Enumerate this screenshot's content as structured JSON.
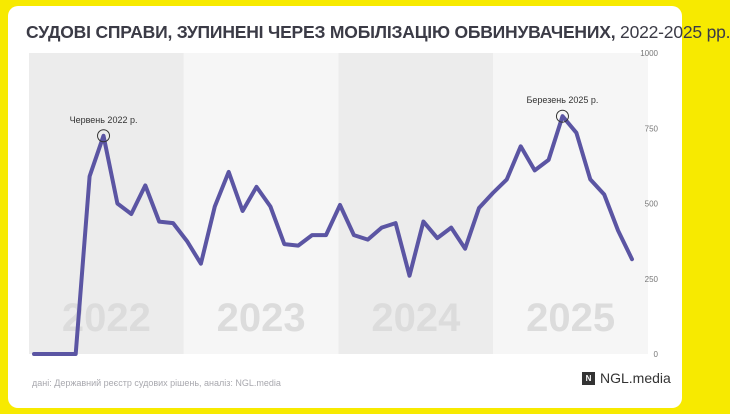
{
  "header": {
    "title_bold": "СУДОВІ СПРАВИ, ЗУПИНЕНІ ЧЕРЕЗ МОБІЛІЗАЦІЮ ОБВИНУВАЧЕНИХ,",
    "title_light": " 2022-2025 рр."
  },
  "footer": {
    "source": "дані: Державний реєстр судових рішень, аналіз: NGL.media",
    "brand_icon": "NGL-logo-square",
    "brand": "NGL.media"
  },
  "colors": {
    "background_frame": "#f7ea00",
    "line": "#5b55a3",
    "band_dark": "#ececec",
    "band_light": "#f6f6f6",
    "year_text": "#dcdcdc"
  },
  "chart_data": {
    "type": "line",
    "title": "СУДОВІ СПРАВИ, ЗУПИНЕНІ ЧЕРЕЗ МОБІЛІЗАЦІЮ ОБВИНУВАЧЕНИХ, 2022-2025 рр.",
    "xlabel": "",
    "ylabel": "",
    "ylim": [
      0,
      1000
    ],
    "y_ticks": [
      0,
      250,
      500,
      750,
      1000
    ],
    "grid": false,
    "y_axis_side": "right",
    "year_bands": [
      {
        "label": "2022",
        "shade": "dark"
      },
      {
        "label": "2023",
        "shade": "light"
      },
      {
        "label": "2024",
        "shade": "dark"
      },
      {
        "label": "2025",
        "shade": "light"
      }
    ],
    "x": [
      "2022-01",
      "2022-02",
      "2022-03",
      "2022-04",
      "2022-05",
      "2022-06",
      "2022-07",
      "2022-08",
      "2022-09",
      "2022-10",
      "2022-11",
      "2022-12",
      "2023-01",
      "2023-02",
      "2023-03",
      "2023-04",
      "2023-05",
      "2023-06",
      "2023-07",
      "2023-08",
      "2023-09",
      "2023-10",
      "2023-11",
      "2023-12",
      "2024-01",
      "2024-02",
      "2024-03",
      "2024-04",
      "2024-05",
      "2024-06",
      "2024-07",
      "2024-08",
      "2024-09",
      "2024-10",
      "2024-11",
      "2024-12",
      "2025-01",
      "2025-02",
      "2025-03",
      "2025-04",
      "2025-05",
      "2025-06",
      "2025-07",
      "2025-08"
    ],
    "series": [
      {
        "values": [
          0,
          0,
          0,
          0,
          590,
          725,
          500,
          465,
          560,
          440,
          435,
          375,
          300,
          490,
          605,
          475,
          555,
          490,
          365,
          360,
          395,
          395,
          495,
          395,
          380,
          420,
          435,
          260,
          440,
          385,
          420,
          350,
          485,
          535,
          580,
          690,
          610,
          645,
          790,
          735,
          580,
          530,
          410,
          315
        ]
      }
    ],
    "annotations": [
      {
        "x": "2022-06",
        "y": 725,
        "label": "Червень 2022 р."
      },
      {
        "x": "2025-03",
        "y": 790,
        "label": "Березень 2025 р."
      }
    ]
  }
}
